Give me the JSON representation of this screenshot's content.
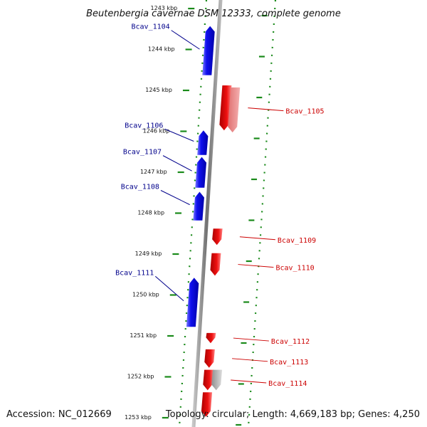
{
  "title": "Beutenbergia cavernae DSM 12333, complete genome",
  "accession": "Accession: NC_012669",
  "topology": "Topology: circular; Length: 4,669,183 bp; Genes: 4,250",
  "colors": {
    "plus_strand": "#1010ee",
    "minus_strand": "#ee1010",
    "pseudo_gray": "#b0b0b0",
    "backbone": "#8a8a8a",
    "ruler": "#1a8a1a",
    "plus_label": "#00008b",
    "minus_label": "#cc0000"
  },
  "ticks": [
    {
      "kbp": 1243,
      "label": "1243 kbp"
    },
    {
      "kbp": 1244,
      "label": "1244 kbp"
    },
    {
      "kbp": 1245,
      "label": "1245 kbp"
    },
    {
      "kbp": 1246,
      "label": "1246 kbp"
    },
    {
      "kbp": 1247,
      "label": "1247 kbp"
    },
    {
      "kbp": 1248,
      "label": "1248 kbp"
    },
    {
      "kbp": 1249,
      "label": "1249 kbp"
    },
    {
      "kbp": 1250,
      "label": "1250 kbp"
    },
    {
      "kbp": 1251,
      "label": "1251 kbp"
    },
    {
      "kbp": 1252,
      "label": "1252 kbp"
    },
    {
      "kbp": 1253,
      "label": "1253 kbp"
    }
  ],
  "genes": [
    {
      "locus": "Bcav_1104",
      "strand": "+",
      "start_kbp": 1243.55,
      "end_kbp": 1244.75,
      "labeled": true
    },
    {
      "locus": "Bcav_1105",
      "strand": "-",
      "start_kbp": 1245.0,
      "end_kbp": 1246.1,
      "labeled": true
    },
    {
      "locus": "",
      "strand": "-",
      "start_kbp": 1245.05,
      "end_kbp": 1246.15,
      "labeled": false,
      "pseudo": true
    },
    {
      "locus": "Bcav_1106",
      "strand": "+",
      "start_kbp": 1246.1,
      "end_kbp": 1246.7,
      "labeled": true
    },
    {
      "locus": "Bcav_1107",
      "strand": "+",
      "start_kbp": 1246.75,
      "end_kbp": 1247.5,
      "labeled": true
    },
    {
      "locus": "Bcav_1108",
      "strand": "+",
      "start_kbp": 1247.6,
      "end_kbp": 1248.3,
      "labeled": true
    },
    {
      "locus": "Bcav_1109",
      "strand": "-",
      "start_kbp": 1248.5,
      "end_kbp": 1248.9,
      "labeled": true
    },
    {
      "locus": "Bcav_1110",
      "strand": "-",
      "start_kbp": 1249.1,
      "end_kbp": 1249.65,
      "labeled": true
    },
    {
      "locus": "Bcav_1111",
      "strand": "+",
      "start_kbp": 1249.7,
      "end_kbp": 1250.9,
      "labeled": true
    },
    {
      "locus": "Bcav_1112",
      "strand": "-",
      "start_kbp": 1251.05,
      "end_kbp": 1251.3,
      "labeled": true
    },
    {
      "locus": "Bcav_1113",
      "strand": "-",
      "start_kbp": 1251.45,
      "end_kbp": 1251.9,
      "labeled": true
    },
    {
      "locus": "Bcav_1114",
      "strand": "-",
      "start_kbp": 1251.95,
      "end_kbp": 1252.45,
      "labeled": true
    },
    {
      "locus": "",
      "strand": "-",
      "start_kbp": 1251.95,
      "end_kbp": 1252.45,
      "labeled": false,
      "pseudo": true
    },
    {
      "locus": "",
      "strand": "-",
      "start_kbp": 1252.5,
      "end_kbp": 1253.1,
      "labeled": false
    }
  ]
}
